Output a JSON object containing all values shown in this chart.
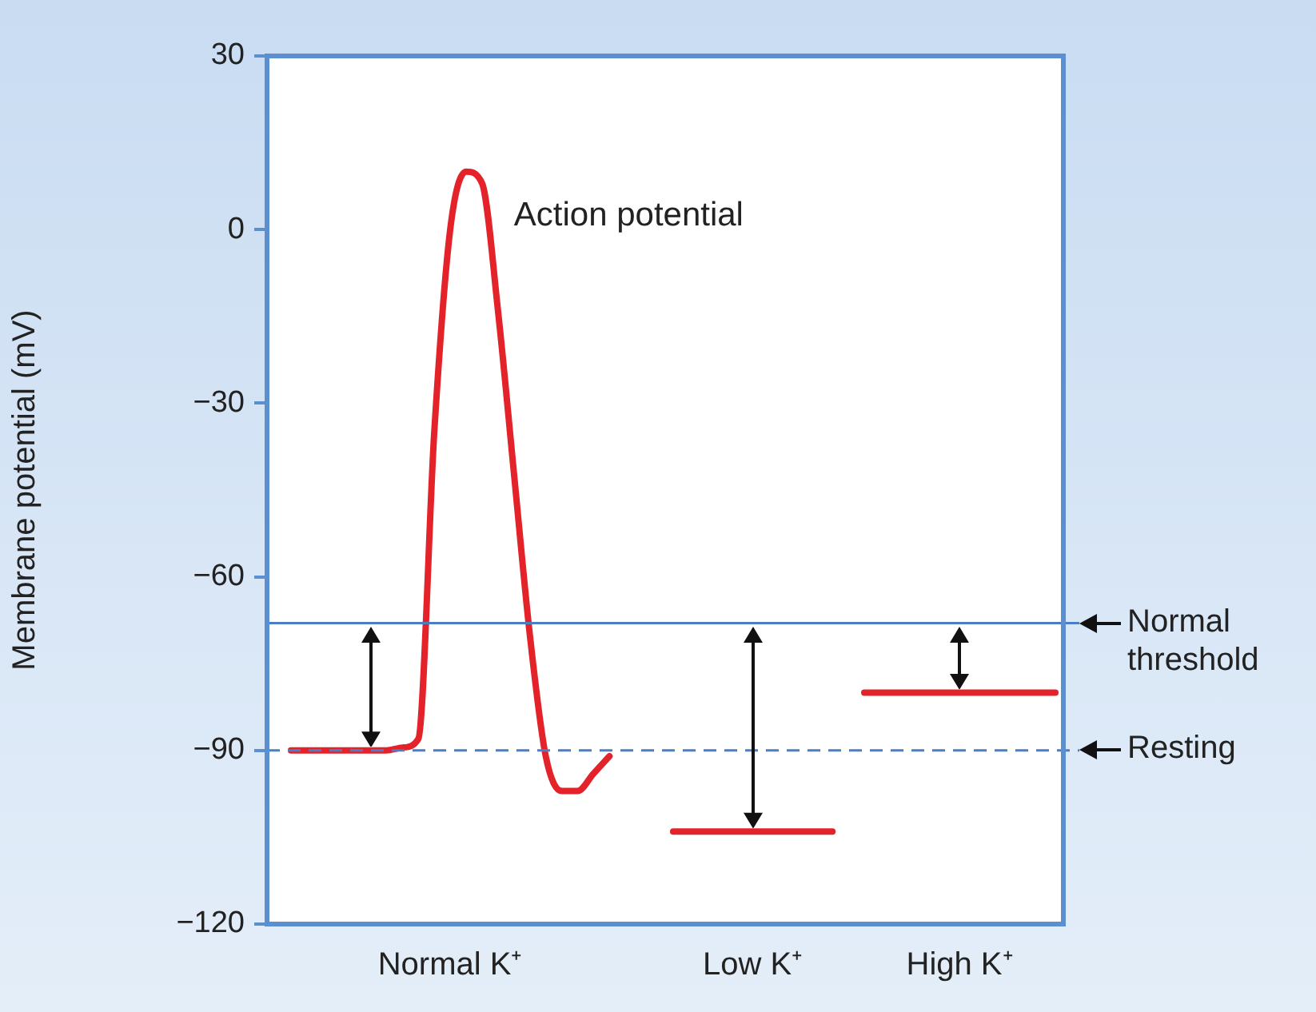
{
  "chart_data": {
    "type": "line",
    "ylabel": "Membrane potential (mV)",
    "categories": [
      null,
      null,
      null,
      null,
      null,
      null,
      null,
      null,
      null,
      null,
      null,
      "Normal K⁺",
      null,
      null,
      null,
      null,
      null,
      null,
      null,
      null,
      null,
      null,
      null,
      null,
      null,
      null,
      null,
      null,
      null,
      null,
      "Low K⁺",
      null,
      null,
      null,
      null,
      null,
      null,
      null,
      null,
      null,
      null,
      null,
      null,
      "High K⁺",
      null,
      null,
      null,
      null,
      null,
      null
    ],
    "ylim": [
      -120,
      30
    ],
    "yticks": [
      -120,
      -90,
      -60,
      -30,
      0,
      30
    ],
    "grid": false,
    "legend": false,
    "marker": "none",
    "line_style": "solid",
    "series": [
      {
        "color": "#e3222a",
        "values": [
          null,
          -90,
          -90,
          -90,
          -90,
          -90,
          -90,
          -90,
          -89.5,
          -88,
          -35,
          0,
          10,
          8,
          -14,
          -42,
          -70,
          -91,
          -97,
          -97,
          -94,
          -91,
          null,
          null,
          null,
          null,
          null,
          null,
          null,
          null,
          null,
          null,
          null,
          null,
          null,
          null,
          null,
          null,
          null,
          null,
          null,
          null,
          null,
          null,
          null,
          null,
          null,
          null,
          null,
          null
        ]
      },
      {
        "color": "#e3222a",
        "values": [
          null,
          null,
          null,
          null,
          null,
          null,
          null,
          null,
          null,
          null,
          null,
          null,
          null,
          null,
          null,
          null,
          null,
          null,
          null,
          null,
          null,
          null,
          null,
          null,
          null,
          -104,
          -104,
          -104,
          -104,
          -104,
          -104,
          -104,
          -104,
          -104,
          -104,
          -104,
          null,
          null,
          null,
          null,
          null,
          null,
          null,
          null,
          null,
          null,
          null,
          null,
          null,
          null
        ]
      },
      {
        "color": "#e3222a",
        "values": [
          null,
          null,
          null,
          null,
          null,
          null,
          null,
          null,
          null,
          null,
          null,
          null,
          null,
          null,
          null,
          null,
          null,
          null,
          null,
          null,
          null,
          null,
          null,
          null,
          null,
          null,
          null,
          null,
          null,
          null,
          null,
          null,
          null,
          null,
          null,
          null,
          null,
          -80,
          -80,
          -80,
          -80,
          -80,
          -80,
          -80,
          -80,
          -80,
          -80,
          -80,
          -80,
          -80
        ]
      }
    ],
    "ref_lines": [
      {
        "axis": "y",
        "value": -68,
        "label": "Normal threshold",
        "color": "#4a7fc8",
        "line_style": "solid"
      },
      {
        "axis": "y",
        "value": -90,
        "label": "Resting",
        "color": "#4a7fc8",
        "line_style": "dashed"
      }
    ],
    "annotations": [
      "Action potential"
    ]
  }
}
